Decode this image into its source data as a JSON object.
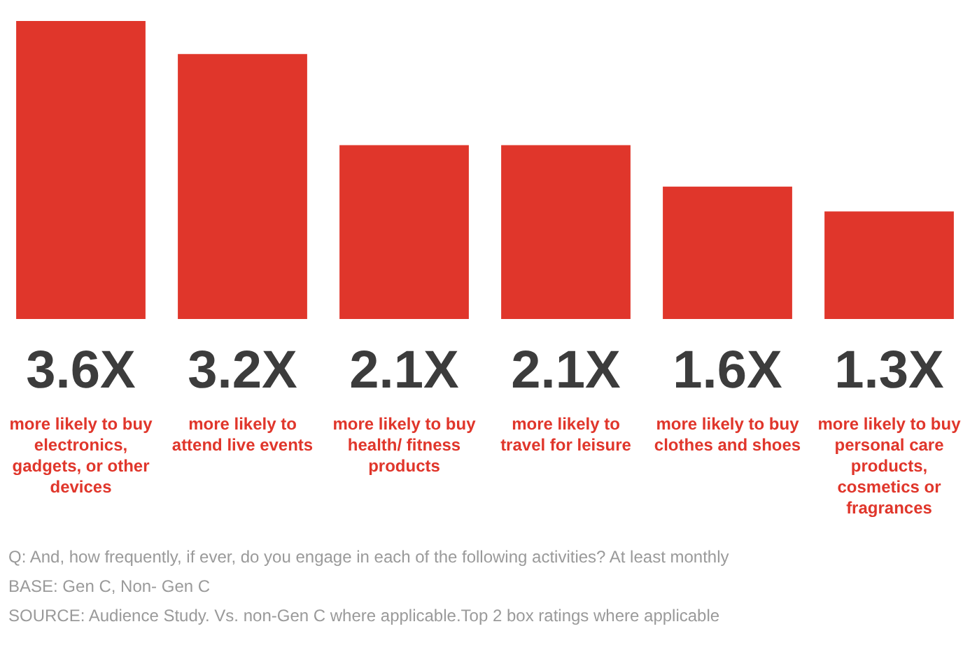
{
  "chart_data": {
    "type": "bar",
    "categories": [
      "more likely to buy electronics, gadgets, or other devices",
      "more likely to attend live events",
      "more likely to buy health/ fitness products",
      "more likely to travel for leisure",
      "more likely to buy clothes and shoes",
      "more likely to buy personal care products, cosmetics or fragrances"
    ],
    "values": [
      3.6,
      3.2,
      2.1,
      2.1,
      1.6,
      1.3
    ],
    "value_labels": [
      "3.6X",
      "3.2X",
      "2.1X",
      "2.1X",
      "1.6X",
      "1.3X"
    ],
    "color": "#e0362b",
    "annotations": [
      "Q: And, how frequently, if ever, do you engage in each of the following activities? At least monthly",
      "BASE: Gen C, Non- Gen C",
      "SOURCE: Audience Study. Vs. non-Gen C where applicable.Top 2 box ratings where applicable"
    ]
  }
}
